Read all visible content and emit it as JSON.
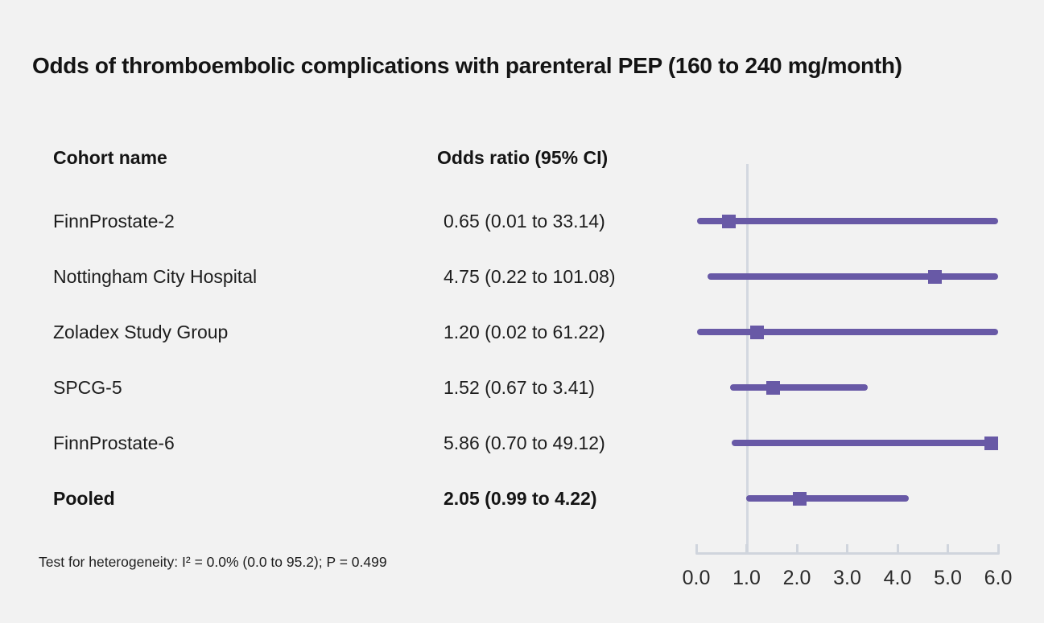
{
  "chart_data": {
    "type": "forest",
    "title": "Odds of thromboembolic complications with parenteral PEP (160 to 240 mg/month)",
    "columns": [
      "Cohort name",
      "Odds ratio (95% CI)"
    ],
    "rows": [
      {
        "label": "FinnProstate-2",
        "or": 0.65,
        "lo": 0.01,
        "hi": 33.14,
        "or_text": "0.65 (0.01 to 33.14)",
        "bold": false
      },
      {
        "label": "Nottingham City Hospital",
        "or": 4.75,
        "lo": 0.22,
        "hi": 101.08,
        "or_text": "4.75 (0.22 to 101.08)",
        "bold": false
      },
      {
        "label": "Zoladex Study Group",
        "or": 1.2,
        "lo": 0.02,
        "hi": 61.22,
        "or_text": "1.20 (0.02 to 61.22)",
        "bold": false
      },
      {
        "label": "SPCG-5",
        "or": 1.52,
        "lo": 0.67,
        "hi": 3.41,
        "or_text": "1.52 (0.67 to 3.41)",
        "bold": false
      },
      {
        "label": "FinnProstate-6",
        "or": 5.86,
        "lo": 0.7,
        "hi": 49.12,
        "or_text": "5.86 (0.70 to 49.12)",
        "bold": false
      },
      {
        "label": "Pooled",
        "or": 2.05,
        "lo": 0.99,
        "hi": 4.22,
        "or_text": "2.05 (0.99 to 4.22)",
        "bold": true
      }
    ],
    "x_axis": {
      "tick_labels": [
        "0.0",
        "1.0",
        "2.0",
        "3.0",
        "4.0",
        "5.0",
        "6.0"
      ],
      "min": 0.0,
      "max": 6.0,
      "reference_line": 1.0,
      "grid": false
    },
    "legend_position": "none",
    "footnote": "Test for heterogeneity: I² = 0.0% (0.0 to 95.2); P = 0.499",
    "colors": {
      "marker": "#6859a6",
      "axis": "#d0d5dd",
      "reference_line": "#d3d8e0",
      "background": "#f2f2f2",
      "text": "#1a1a1a"
    }
  }
}
